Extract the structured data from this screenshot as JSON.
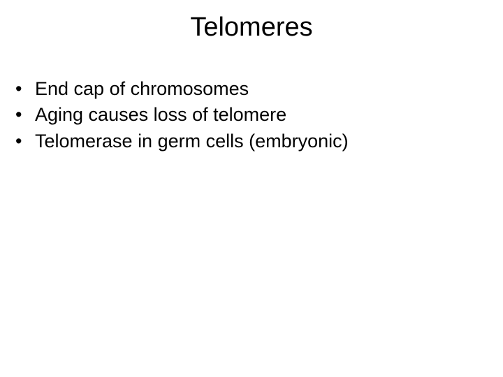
{
  "slide": {
    "title": "Telomeres",
    "title_fontsize": 38,
    "body_fontsize": 27,
    "background_color": "#ffffff",
    "text_color": "#000000",
    "font_family": "Arial",
    "bullets": [
      "End cap of chromosomes",
      "Aging causes loss of telomere",
      "Telomerase in germ cells (embryonic)"
    ]
  }
}
